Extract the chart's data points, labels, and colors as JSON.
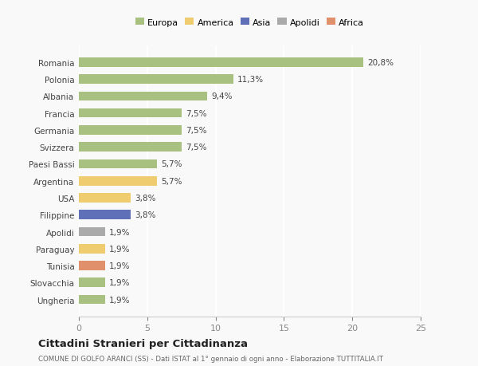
{
  "categories": [
    "Ungheria",
    "Slovacchia",
    "Tunisia",
    "Paraguay",
    "Apolidi",
    "Filippine",
    "USA",
    "Argentina",
    "Paesi Bassi",
    "Svizzera",
    "Germania",
    "Francia",
    "Albania",
    "Polonia",
    "Romania"
  ],
  "values": [
    1.9,
    1.9,
    1.9,
    1.9,
    1.9,
    3.8,
    3.8,
    5.7,
    5.7,
    7.5,
    7.5,
    7.5,
    9.4,
    11.3,
    20.8
  ],
  "labels": [
    "1,9%",
    "1,9%",
    "1,9%",
    "1,9%",
    "1,9%",
    "3,8%",
    "3,8%",
    "5,7%",
    "5,7%",
    "7,5%",
    "7,5%",
    "7,5%",
    "9,4%",
    "11,3%",
    "20,8%"
  ],
  "colors": [
    "#a8c080",
    "#a8c080",
    "#e0906a",
    "#f0cc70",
    "#aaaaaa",
    "#6070b8",
    "#f0cc70",
    "#f0cc70",
    "#a8c080",
    "#a8c080",
    "#a8c080",
    "#a8c080",
    "#a8c080",
    "#a8c080",
    "#a8c080"
  ],
  "legend": [
    {
      "label": "Europa",
      "color": "#a8c080"
    },
    {
      "label": "America",
      "color": "#f0cc70"
    },
    {
      "label": "Asia",
      "color": "#6070b8"
    },
    {
      "label": "Apolidi",
      "color": "#aaaaaa"
    },
    {
      "label": "Africa",
      "color": "#e0906a"
    }
  ],
  "xlim": [
    0,
    25
  ],
  "xticks": [
    0,
    5,
    10,
    15,
    20,
    25
  ],
  "title": "Cittadini Stranieri per Cittadinanza",
  "subtitle": "COMUNE DI GOLFO ARANCI (SS) - Dati ISTAT al 1° gennaio di ogni anno - Elaborazione TUTTITALIA.IT",
  "background_color": "#f9f9f9",
  "grid_color": "#ffffff",
  "bar_height": 0.55
}
